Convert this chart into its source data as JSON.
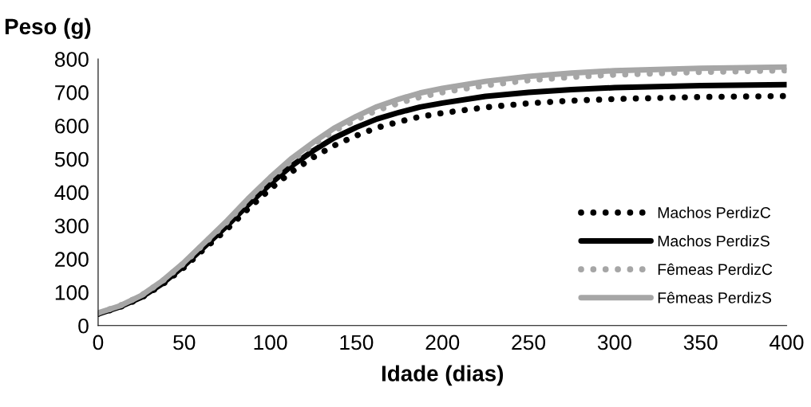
{
  "chart_data": {
    "type": "line",
    "ylabel": "Peso (g)",
    "xlabel": "Idade (dias)",
    "x": [
      0,
      12,
      25,
      37,
      50,
      62,
      75,
      87,
      100,
      112,
      125,
      137,
      150,
      162,
      175,
      187,
      200,
      225,
      250,
      275,
      300,
      350,
      400
    ],
    "series": [
      {
        "name": "Machos PerdizC",
        "color": "#000000",
        "line_style": "dotted",
        "values": [
          35,
          54,
          83,
          122,
          175,
          232,
          290,
          350,
          410,
          460,
          505,
          540,
          570,
          594,
          612,
          627,
          638,
          655,
          667,
          675,
          680,
          686,
          689
        ]
      },
      {
        "name": "Machos PerdizS",
        "color": "#000000",
        "line_style": "solid",
        "values": [
          35,
          55,
          85,
          125,
          180,
          238,
          300,
          362,
          425,
          478,
          525,
          563,
          595,
          620,
          640,
          656,
          668,
          688,
          700,
          708,
          714,
          720,
          723
        ]
      },
      {
        "name": "Fêmeas PerdizC",
        "color": "#a6a6a6",
        "line_style": "dotted",
        "values": [
          38,
          58,
          90,
          132,
          188,
          248,
          312,
          377,
          440,
          494,
          543,
          584,
          618,
          646,
          668,
          686,
          700,
          721,
          736,
          746,
          753,
          761,
          766
        ]
      },
      {
        "name": "Fêmeas PerdizS",
        "color": "#a6a6a6",
        "line_style": "solid",
        "values": [
          38,
          58,
          90,
          133,
          190,
          250,
          315,
          380,
          445,
          500,
          550,
          592,
          628,
          657,
          680,
          698,
          712,
          733,
          748,
          758,
          765,
          772,
          776
        ]
      }
    ],
    "xlim": [
      0,
      400
    ],
    "xticks": [
      0,
      50,
      100,
      150,
      200,
      250,
      300,
      350,
      400
    ],
    "ylim": [
      0,
      800
    ],
    "yticks": [
      0,
      100,
      200,
      300,
      400,
      500,
      600,
      700,
      800
    ],
    "grid": false,
    "legend": "bottom right",
    "marker": "none"
  }
}
